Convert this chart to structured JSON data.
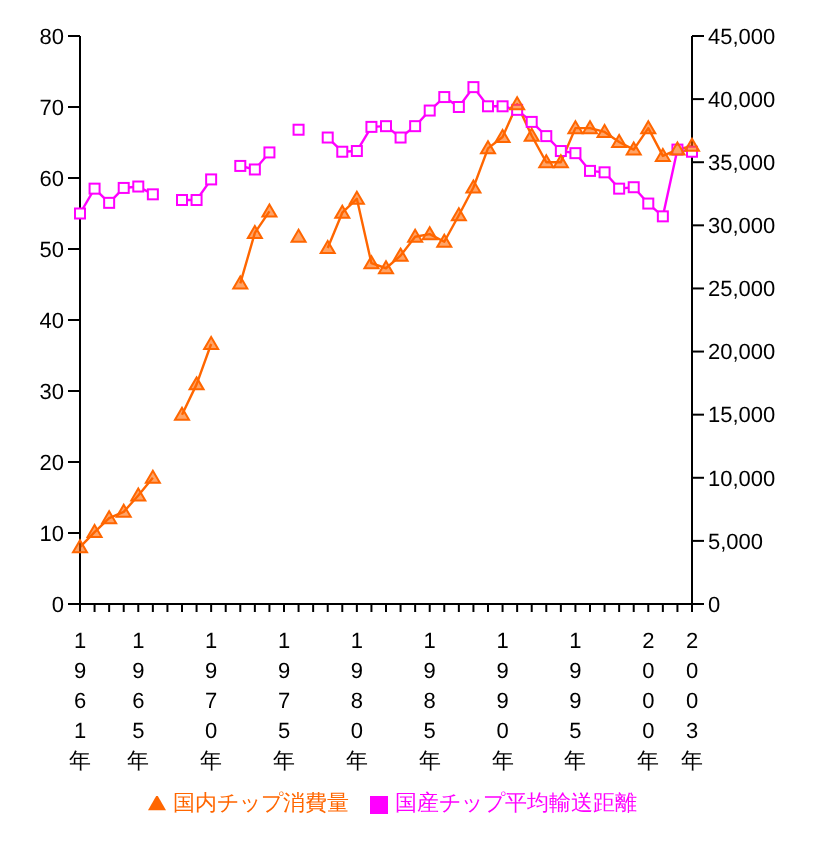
{
  "chart_data": {
    "type": "line",
    "categories": [
      "1961年",
      null,
      null,
      null,
      "1965年",
      null,
      null,
      null,
      null,
      "1970年",
      null,
      null,
      null,
      null,
      "1975年",
      null,
      null,
      null,
      null,
      "1980年",
      null,
      null,
      null,
      null,
      "1985年",
      null,
      null,
      null,
      null,
      "1990年",
      null,
      null,
      null,
      null,
      "1995年",
      null,
      null,
      null,
      null,
      "2000年",
      null,
      null,
      "2003年"
    ],
    "series": [
      {
        "name": "国産チップ平均輸送距離",
        "color": "#ff00ff",
        "marker": "square",
        "values": [
          55.0,
          58.5,
          56.5,
          58.6,
          58.8,
          57.7,
          null,
          56.9,
          56.9,
          59.8,
          null,
          61.7,
          61.2,
          63.6,
          null,
          66.8,
          null,
          65.7,
          63.7,
          63.8,
          67.2,
          67.3,
          65.7,
          67.3,
          69.5,
          71.4,
          70.0,
          72.8,
          70.1,
          70.1,
          69.6,
          67.9,
          65.9,
          63.8,
          63.5,
          61.0,
          60.8,
          58.5,
          58.7,
          56.4,
          54.6,
          64.0,
          63.7
        ]
      },
      {
        "name": "国内チップ消費量",
        "color": "#ff6600",
        "marker": "triangle",
        "axis": "y2",
        "values": [
          4500,
          5700,
          6800,
          7300,
          8600,
          10000,
          null,
          15000,
          17400,
          20600,
          null,
          25400,
          29400,
          31100,
          null,
          29100,
          null,
          28200,
          31000,
          32100,
          27000,
          26600,
          27600,
          29100,
          29300,
          28700,
          30800,
          33000,
          36100,
          37000,
          39600,
          37100,
          35000,
          35000,
          37700,
          37700,
          37400,
          36600,
          36000,
          37700,
          35500,
          36000,
          36300
        ]
      }
    ],
    "ylim": [
      0,
      80
    ],
    "yticks": [
      0,
      10,
      20,
      30,
      40,
      50,
      60,
      70,
      80
    ],
    "y2lim": [
      0,
      45000
    ],
    "y2ticks": [
      0,
      {
        "value": 5000,
        "label": "5,000"
      },
      {
        "value": 10000,
        "label": "10,000"
      },
      {
        "value": 15000,
        "label": "15,000"
      },
      {
        "value": 20000,
        "label": "20,000"
      },
      {
        "value": 25000,
        "label": "25,000"
      },
      {
        "value": 30000,
        "label": "30,000"
      },
      {
        "value": 35000,
        "label": "35,000"
      },
      {
        "value": 40000,
        "label": "40,000"
      },
      {
        "value": 45000,
        "label": "45,000"
      }
    ],
    "grid": false,
    "legend": "bottom"
  }
}
